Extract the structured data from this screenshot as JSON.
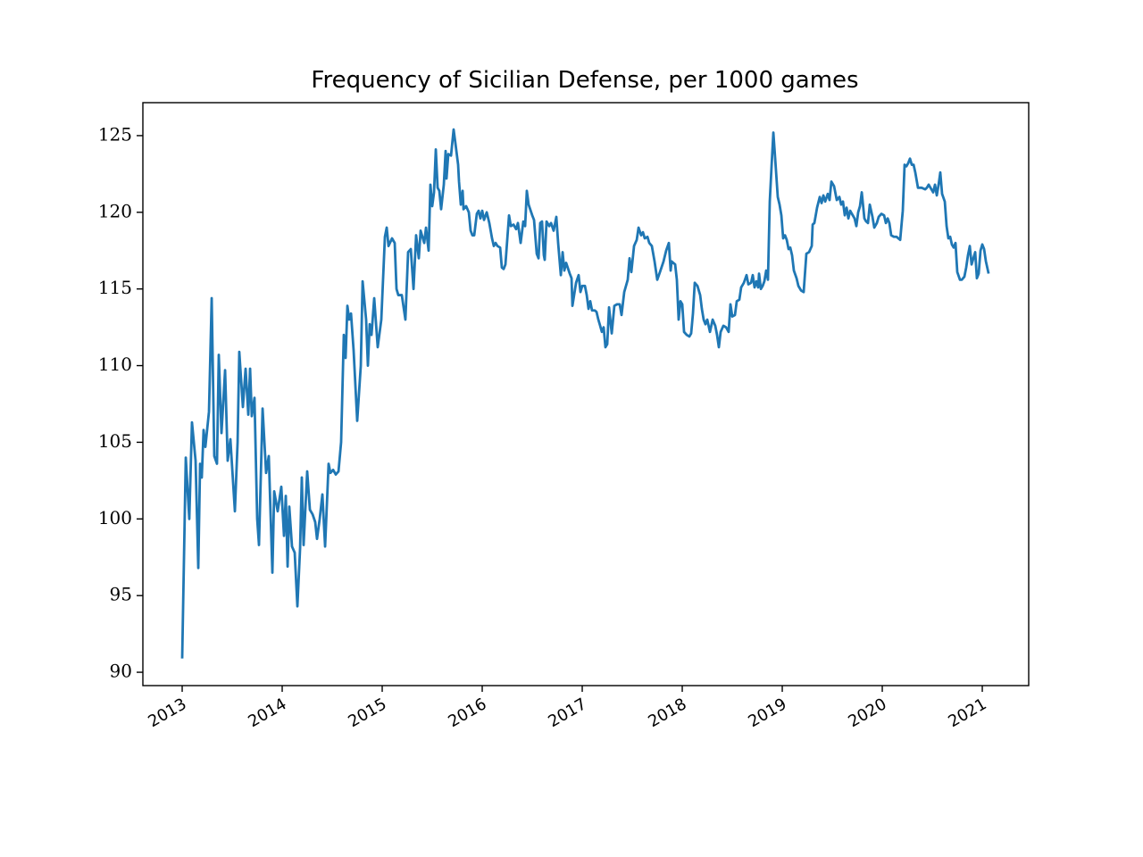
{
  "chart_data": {
    "type": "line",
    "title": "Frequency of Sicilian Defense, per 1000 games",
    "color": "#1f77b4",
    "xlim": [
      2012.607,
      2021.464
    ],
    "xticks": [
      2013,
      2014,
      2015,
      2016,
      2017,
      2018,
      2019,
      2020,
      2021
    ],
    "ylim": [
      89.13,
      127.15
    ],
    "yticks": [
      90,
      95,
      100,
      105,
      110,
      115,
      120,
      125
    ],
    "grid": false,
    "x": [
      2013.0,
      2013.036,
      2013.071,
      2013.098,
      2013.134,
      2013.161,
      2013.179,
      2013.196,
      2013.214,
      2013.232,
      2013.268,
      2013.295,
      2013.321,
      2013.348,
      2013.366,
      2013.393,
      2013.429,
      2013.455,
      2013.482,
      2013.527,
      2013.554,
      2013.571,
      2013.607,
      2013.634,
      2013.661,
      2013.679,
      2013.696,
      2013.723,
      2013.75,
      2013.768,
      2013.804,
      2013.839,
      2013.866,
      2013.902,
      2013.92,
      2013.955,
      2013.991,
      2014.018,
      2014.036,
      2014.054,
      2014.071,
      2014.098,
      2014.125,
      2014.152,
      2014.179,
      2014.196,
      2014.214,
      2014.25,
      2014.277,
      2014.304,
      2014.33,
      2014.348,
      2014.375,
      2014.402,
      2014.429,
      2014.464,
      2014.482,
      2014.509,
      2014.536,
      2014.563,
      2014.589,
      2014.616,
      2014.634,
      2014.652,
      2014.67,
      2014.688,
      2014.714,
      2014.75,
      2014.786,
      2014.804,
      2014.839,
      2014.857,
      2014.875,
      2014.893,
      2014.92,
      2014.955,
      2014.991,
      2015.027,
      2015.045,
      2015.063,
      2015.098,
      2015.125,
      2015.143,
      2015.161,
      2015.196,
      2015.232,
      2015.259,
      2015.286,
      2015.313,
      2015.339,
      2015.366,
      2015.384,
      2015.42,
      2015.438,
      2015.464,
      2015.482,
      2015.5,
      2015.518,
      2015.536,
      2015.554,
      2015.571,
      2015.589,
      2015.616,
      2015.634,
      2015.643,
      2015.661,
      2015.688,
      2015.714,
      2015.732,
      2015.759,
      2015.768,
      2015.786,
      2015.804,
      2015.813,
      2015.839,
      2015.866,
      2015.884,
      2015.902,
      2015.92,
      2015.946,
      2015.964,
      2015.982,
      2016.0,
      2016.018,
      2016.045,
      2016.071,
      2016.098,
      2016.116,
      2016.134,
      2016.152,
      2016.179,
      2016.196,
      2016.214,
      2016.232,
      2016.268,
      2016.286,
      2016.313,
      2016.339,
      2016.357,
      2016.384,
      2016.411,
      2016.429,
      2016.446,
      2016.464,
      2016.5,
      2016.518,
      2016.545,
      2016.563,
      2016.58,
      2016.598,
      2016.616,
      2016.625,
      2016.643,
      2016.67,
      2016.688,
      2016.714,
      2016.741,
      2016.759,
      2016.786,
      2016.804,
      2016.821,
      2016.839,
      2016.875,
      2016.893,
      2016.902,
      2016.938,
      2016.964,
      2016.982,
      2017.0,
      2017.027,
      2017.045,
      2017.063,
      2017.08,
      2017.098,
      2017.125,
      2017.143,
      2017.161,
      2017.179,
      2017.196,
      2017.214,
      2017.232,
      2017.25,
      2017.268,
      2017.295,
      2017.321,
      2017.348,
      2017.375,
      2017.393,
      2017.42,
      2017.455,
      2017.473,
      2017.491,
      2017.518,
      2017.545,
      2017.563,
      2017.589,
      2017.607,
      2017.625,
      2017.652,
      2017.67,
      2017.696,
      2017.723,
      2017.75,
      2017.777,
      2017.813,
      2017.839,
      2017.866,
      2017.884,
      2017.893,
      2017.929,
      2017.946,
      2017.964,
      2017.982,
      2018.0,
      2018.018,
      2018.045,
      2018.071,
      2018.089,
      2018.107,
      2018.125,
      2018.152,
      2018.179,
      2018.196,
      2018.214,
      2018.232,
      2018.25,
      2018.277,
      2018.304,
      2018.33,
      2018.348,
      2018.366,
      2018.384,
      2018.411,
      2018.438,
      2018.464,
      2018.482,
      2018.5,
      2018.527,
      2018.545,
      2018.571,
      2018.589,
      2018.616,
      2018.643,
      2018.661,
      2018.688,
      2018.705,
      2018.723,
      2018.741,
      2018.759,
      2018.768,
      2018.786,
      2018.804,
      2018.821,
      2018.839,
      2018.857,
      2018.875,
      2018.893,
      2018.911,
      2018.929,
      2018.955,
      2018.973,
      2018.991,
      2019.009,
      2019.027,
      2019.045,
      2019.063,
      2019.08,
      2019.098,
      2019.116,
      2019.143,
      2019.161,
      2019.188,
      2019.214,
      2019.241,
      2019.268,
      2019.295,
      2019.304,
      2019.321,
      2019.348,
      2019.375,
      2019.393,
      2019.411,
      2019.429,
      2019.455,
      2019.473,
      2019.491,
      2019.518,
      2019.545,
      2019.571,
      2019.589,
      2019.607,
      2019.625,
      2019.643,
      2019.661,
      2019.679,
      2019.696,
      2019.723,
      2019.741,
      2019.759,
      2019.777,
      2019.795,
      2019.821,
      2019.839,
      2019.857,
      2019.875,
      2019.902,
      2019.92,
      2019.946,
      2019.964,
      2019.991,
      2020.018,
      2020.036,
      2020.054,
      2020.071,
      2020.089,
      2020.116,
      2020.143,
      2020.161,
      2020.179,
      2020.205,
      2020.223,
      2020.241,
      2020.259,
      2020.277,
      2020.295,
      2020.313,
      2020.33,
      2020.357,
      2020.393,
      2020.429,
      2020.446,
      2020.464,
      2020.491,
      2020.509,
      2020.527,
      2020.545,
      2020.563,
      2020.58,
      2020.598,
      2020.625,
      2020.643,
      2020.661,
      2020.679,
      2020.696,
      2020.714,
      2020.732,
      2020.75,
      2020.777,
      2020.795,
      2020.821,
      2020.839,
      2020.857,
      2020.875,
      2020.893,
      2020.911,
      2020.929,
      2020.946,
      2020.964,
      2020.982,
      2021.0,
      2021.018,
      2021.036,
      2021.063
    ],
    "values": [
      90.9,
      104,
      100,
      106.3,
      103.8,
      96.8,
      103.6,
      102.7,
      105.8,
      104.7,
      107,
      114.4,
      104.1,
      103.6,
      110.7,
      105.6,
      109.7,
      103.8,
      105.2,
      100.5,
      105,
      110.9,
      107.3,
      109.8,
      106.8,
      109.8,
      106.7,
      107.9,
      100,
      98.3,
      107.2,
      103,
      104.1,
      96.5,
      101.8,
      100.5,
      102.1,
      98.9,
      101.5,
      96.9,
      100.8,
      98.2,
      97.8,
      94.3,
      98.1,
      102.7,
      98.3,
      103.1,
      100.6,
      100.3,
      99.8,
      98.7,
      100,
      101.6,
      98.2,
      103.6,
      103,
      103.2,
      102.9,
      103.1,
      105,
      112,
      110.5,
      113.9,
      113,
      113.4,
      111,
      106.4,
      110,
      115.5,
      113,
      110,
      112.7,
      112,
      114.4,
      111.2,
      113,
      118.4,
      119,
      117.8,
      118.3,
      118,
      115,
      114.6,
      114.6,
      113,
      117.4,
      117.6,
      115,
      118.5,
      117,
      118.8,
      118,
      119,
      117.5,
      121.8,
      120.4,
      121.3,
      124.1,
      121.6,
      121.4,
      120.2,
      121.8,
      124,
      122.2,
      123.8,
      123.7,
      125.4,
      124.5,
      123.1,
      122,
      120.5,
      121.4,
      120.2,
      120.4,
      120,
      118.8,
      118.5,
      118.5,
      119.9,
      120.1,
      119.6,
      120.1,
      119.5,
      120,
      119.3,
      118.3,
      117.8,
      118,
      117.8,
      117.7,
      116.4,
      116.3,
      116.6,
      119.8,
      119.1,
      119.2,
      118.9,
      119.3,
      118,
      119.4,
      119.1,
      121.4,
      120.5,
      119.8,
      119.5,
      117.3,
      117,
      119.3,
      119.4,
      117.2,
      116.9,
      119.4,
      119.1,
      119.3,
      118.8,
      119.7,
      118,
      115.9,
      117.4,
      116.2,
      116.7,
      116,
      115.7,
      113.9,
      115.4,
      115.9,
      114.8,
      115.2,
      115.2,
      114.6,
      113.7,
      114.2,
      113.6,
      113.6,
      113.5,
      113,
      112.6,
      112.2,
      112.5,
      111.2,
      111.4,
      113.8,
      112.1,
      113.9,
      114,
      114,
      113.3,
      114.8,
      115.6,
      117,
      116.1,
      117.8,
      118.2,
      119,
      118.5,
      118.7,
      118.3,
      118.4,
      118,
      117.8,
      116.8,
      115.6,
      116.1,
      116.8,
      117.5,
      118,
      116.2,
      116.8,
      116.6,
      115.6,
      113,
      114.2,
      114,
      112.2,
      112,
      111.9,
      112.1,
      113.4,
      115.4,
      115.2,
      114.6,
      113.7,
      113,
      112.7,
      113,
      112.2,
      113,
      112.6,
      112,
      111.2,
      112.2,
      112.6,
      112.5,
      112.2,
      114,
      113.2,
      113.3,
      114.2,
      114.3,
      115.1,
      115.4,
      115.9,
      115.3,
      115.4,
      115.9,
      115.1,
      115.5,
      115.1,
      116,
      115,
      115.2,
      115.5,
      116.2,
      115.6,
      120.7,
      123,
      125.2,
      123.5,
      121,
      120.5,
      119.8,
      118.3,
      118.5,
      118.2,
      117.6,
      117.7,
      117.2,
      116.2,
      115.7,
      115.2,
      114.9,
      114.8,
      117.3,
      117.4,
      117.8,
      119.2,
      119.3,
      120.3,
      121,
      120.6,
      121.1,
      120.7,
      121.2,
      120.8,
      122,
      121.7,
      120.8,
      121,
      120.5,
      120.7,
      119.8,
      120.3,
      119.6,
      120.1,
      119.9,
      119.6,
      119.1,
      120,
      120.4,
      121.3,
      119.6,
      119.4,
      119.3,
      120.5,
      119.7,
      119,
      119.3,
      119.7,
      119.9,
      119.8,
      119.3,
      119.6,
      119.3,
      118.5,
      118.4,
      118.4,
      118.3,
      118.2,
      120.1,
      123.1,
      123,
      123.2,
      123.5,
      123.1,
      123.1,
      122.6,
      121.6,
      121.6,
      121.5,
      121.6,
      121.8,
      121.5,
      121.3,
      121.8,
      121.1,
      121.8,
      122.6,
      121.2,
      120.7,
      119.1,
      118.3,
      118.4,
      117.9,
      117.7,
      118,
      116.1,
      115.6,
      115.6,
      115.8,
      116.4,
      117.2,
      117.8,
      116.6,
      117,
      117.4,
      115.7,
      116,
      117.5,
      117.9,
      117.6,
      116.8,
      116
    ]
  }
}
